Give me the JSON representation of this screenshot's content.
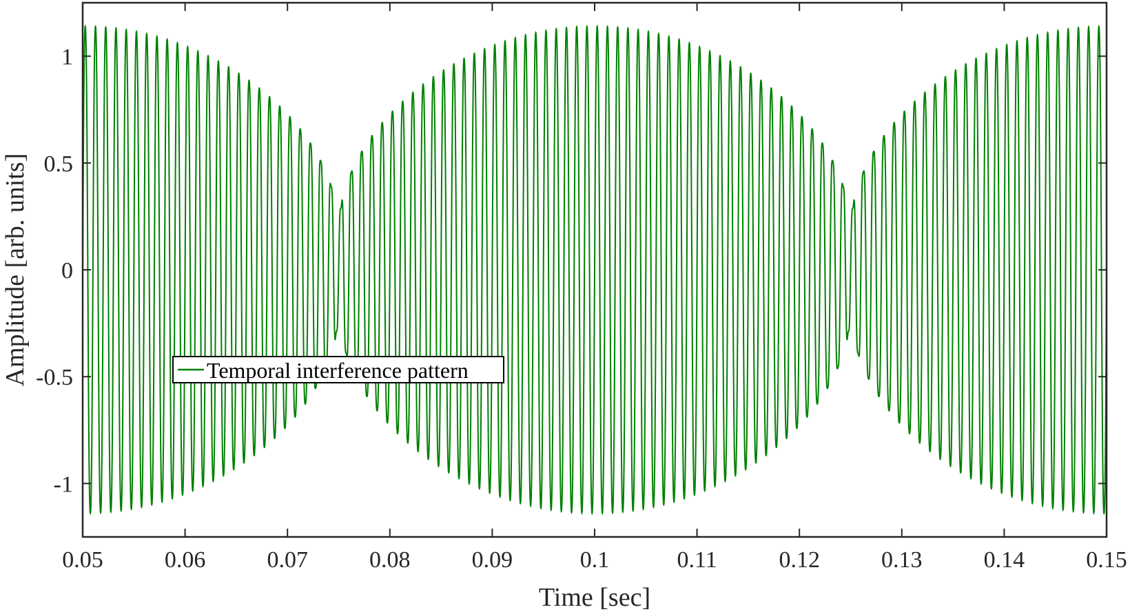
{
  "chart_data": {
    "type": "line",
    "title": "",
    "xlabel": "Time [sec]",
    "ylabel": "Amplitude [arb. units]",
    "xlim": [
      0.05,
      0.15
    ],
    "ylim": [
      -1.25,
      1.25
    ],
    "x_ticks": [
      0.05,
      0.06,
      0.07,
      0.08,
      0.09,
      0.1,
      0.11,
      0.12,
      0.13,
      0.14,
      0.15
    ],
    "x_tick_labels": [
      "0.05",
      "0.06",
      "0.07",
      "0.08",
      "0.09",
      "0.1",
      "0.11",
      "0.12",
      "0.13",
      "0.14",
      "0.15"
    ],
    "y_ticks": [
      -1,
      -0.5,
      0,
      0.5,
      1
    ],
    "y_tick_labels": [
      "-1",
      "-0.5",
      "0",
      "0.5",
      "1"
    ],
    "grid": false,
    "legend_position": "center-left",
    "series": [
      {
        "name": "Temporal interference pattern",
        "color": "#008000",
        "carrier_frequency_hz": 1000,
        "beat_frequency_hz": 20,
        "peak_amplitude": 1.2,
        "envelope_max_times": [
          0.05,
          0.1,
          0.15
        ],
        "envelope_min_times": [
          0.075,
          0.125
        ],
        "low_amplitude_level": 0.2
      }
    ]
  }
}
